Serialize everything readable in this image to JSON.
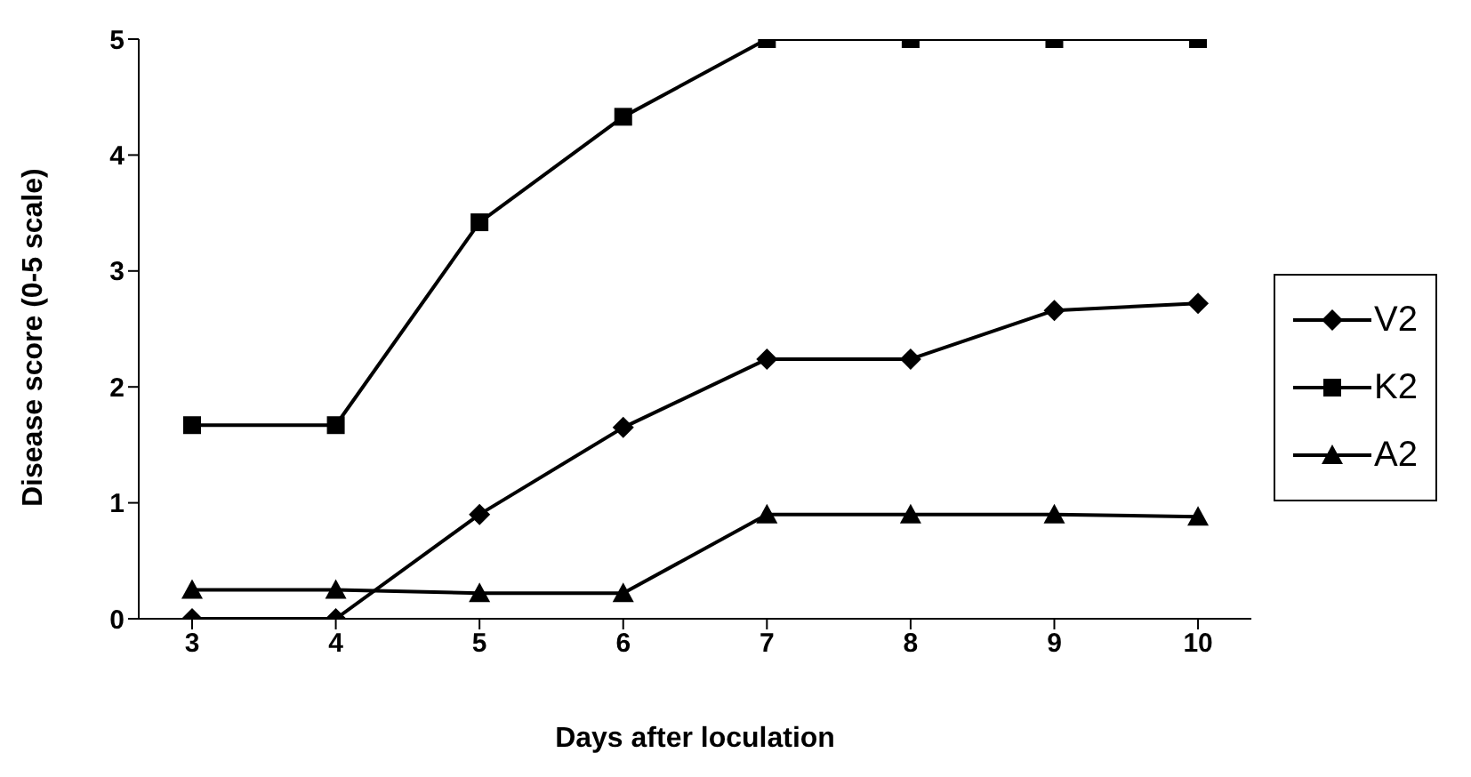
{
  "chart_data": {
    "type": "line",
    "xlabel": "Days after loculation",
    "ylabel": "Disease score (0-5 scale)",
    "categories": [
      "3",
      "4",
      "5",
      "6",
      "7",
      "8",
      "9",
      "10"
    ],
    "ylim": [
      0,
      5
    ],
    "yticks": [
      0,
      1,
      2,
      3,
      4,
      5
    ],
    "grid": false,
    "legend": "right",
    "line_style": "solid",
    "series": [
      {
        "name": "V2",
        "color": "#000000",
        "marker": "diamond",
        "values": [
          0,
          0,
          0.9,
          1.65,
          2.24,
          2.24,
          2.66,
          2.72
        ]
      },
      {
        "name": "K2",
        "color": "#000000",
        "marker": "square",
        "values": [
          1.67,
          1.67,
          3.42,
          4.33,
          5,
          5,
          5,
          5
        ]
      },
      {
        "name": "A2",
        "color": "#000000",
        "marker": "triangle",
        "values": [
          0.25,
          0.25,
          0.22,
          0.22,
          0.9,
          0.9,
          0.9,
          0.88
        ]
      }
    ]
  }
}
